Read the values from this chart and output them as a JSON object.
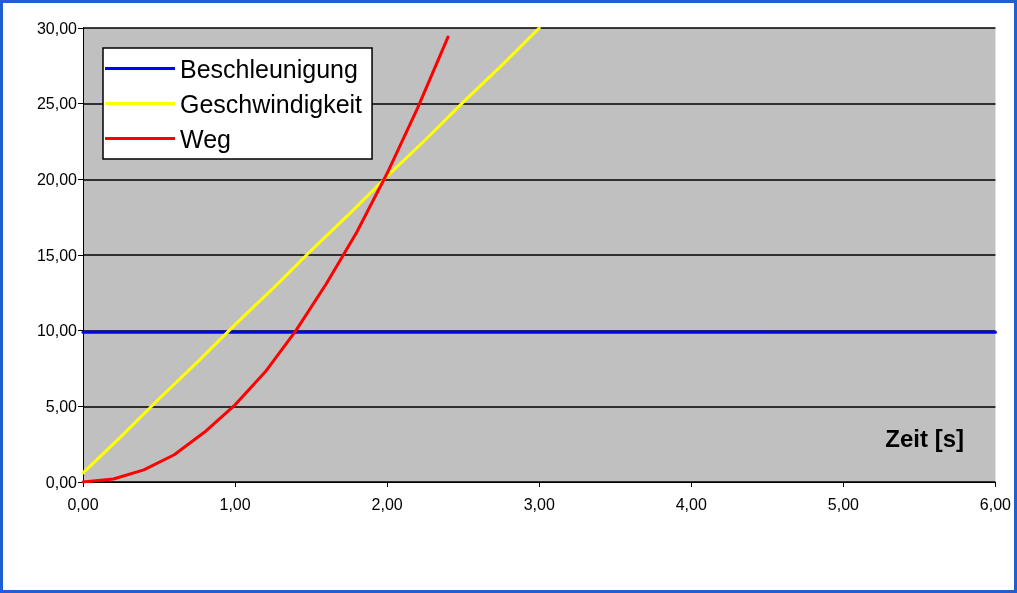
{
  "chart_data": {
    "type": "line",
    "xlabel": "Zeit [s]",
    "series": [
      {
        "name": "Beschleunigung",
        "color": "#0000ff",
        "x": [
          0,
          6
        ],
        "values": [
          9.9,
          9.9
        ]
      },
      {
        "name": "Geschwindigkeit",
        "color": "#ffff00",
        "x": [
          0,
          0.25,
          0.5,
          0.75,
          1,
          1.25,
          1.5,
          1.75,
          2,
          2.25,
          2.5,
          2.75,
          3
        ],
        "values": [
          0.6,
          3.0,
          5.5,
          7.9,
          10.4,
          12.8,
          15.3,
          17.7,
          20.2,
          22.6,
          25.1,
          27.5,
          30.0
        ]
      },
      {
        "name": "Weg",
        "color": "#ff0000",
        "x": [
          0,
          0.2,
          0.4,
          0.6,
          0.8,
          1,
          1.2,
          1.4,
          1.6,
          1.8,
          2,
          2.2,
          2.4
        ],
        "values": [
          0,
          0.2,
          0.8,
          1.8,
          3.3,
          5.1,
          7.3,
          10.0,
          13.1,
          16.5,
          20.4,
          24.7,
          29.4
        ]
      }
    ],
    "xlim": [
      0,
      6
    ],
    "ylim": [
      0,
      30
    ],
    "xticks": [
      {
        "value": 0,
        "label": "0,00"
      },
      {
        "value": 1,
        "label": "1,00"
      },
      {
        "value": 2,
        "label": "2,00"
      },
      {
        "value": 3,
        "label": "3,00"
      },
      {
        "value": 4,
        "label": "4,00"
      },
      {
        "value": 5,
        "label": "5,00"
      },
      {
        "value": 6,
        "label": "6,00"
      }
    ],
    "yticks": [
      {
        "value": 0,
        "label": "0,00"
      },
      {
        "value": 5,
        "label": "5,00"
      },
      {
        "value": 10,
        "label": "10,00"
      },
      {
        "value": 15,
        "label": "15,00"
      },
      {
        "value": 20,
        "label": "20,00"
      },
      {
        "value": 25,
        "label": "25,00"
      },
      {
        "value": 30,
        "label": "30,00"
      }
    ],
    "grid": "y",
    "legend": "top left",
    "marker": "none",
    "line_style": "solid"
  }
}
